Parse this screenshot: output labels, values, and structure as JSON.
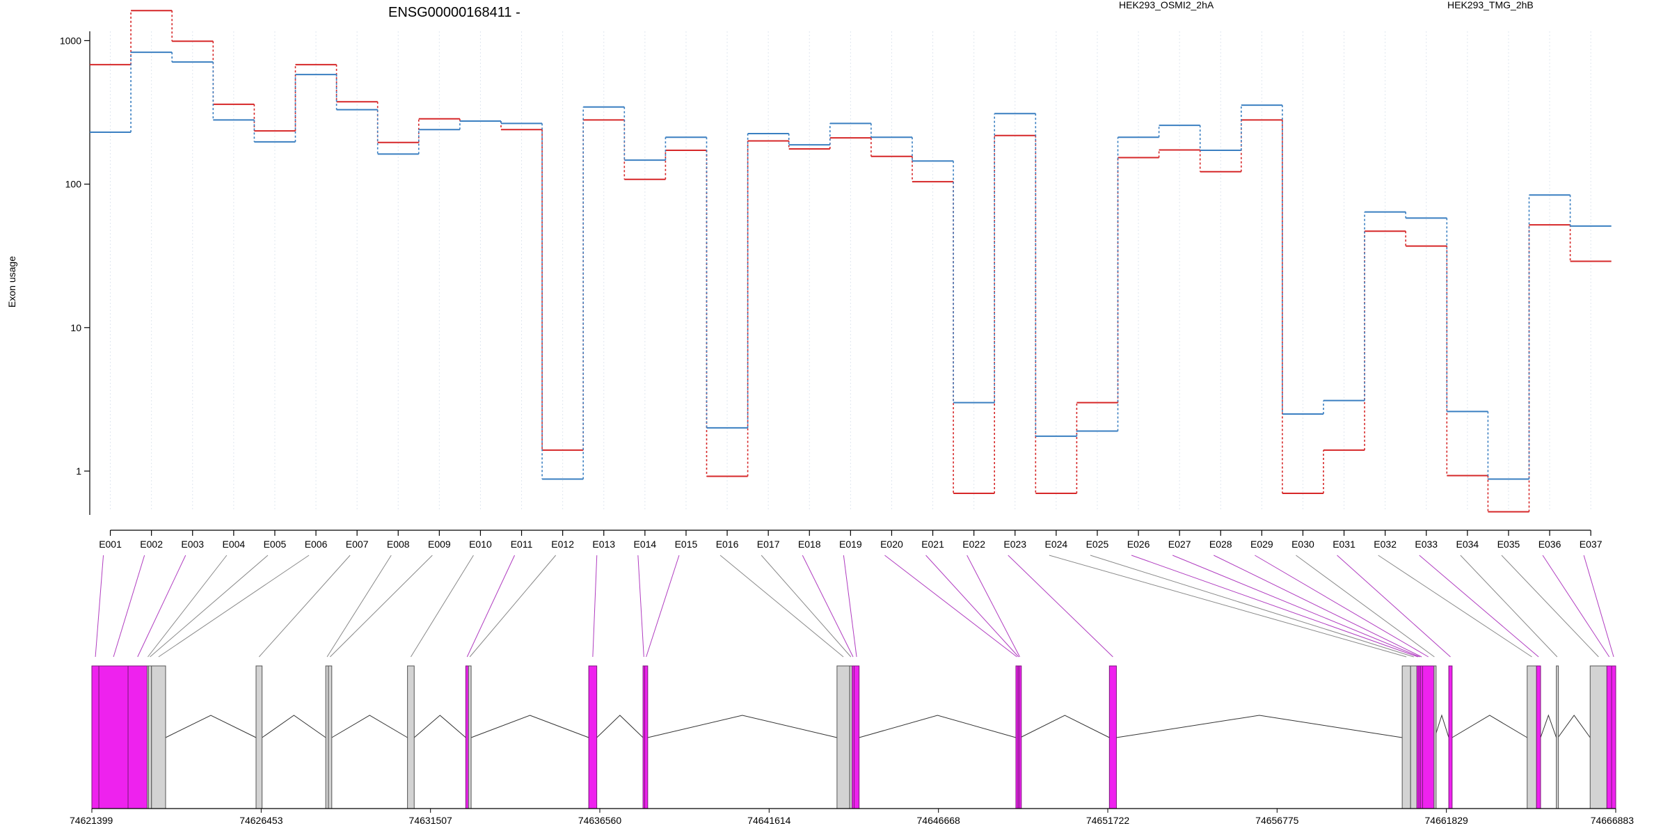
{
  "chart_data": [
    {
      "type": "line",
      "title": "ENSG00000168411 -",
      "ylabel": "Exon usage",
      "xlabel": "",
      "y_scale": "log",
      "ylim": [
        0.45,
        2000
      ],
      "grid": "vertical dotted lines at each exon",
      "legend": "top, horizontal",
      "yticks": [
        1,
        10,
        100,
        1000
      ],
      "ytick_labels": [
        "1",
        "10",
        "100",
        "1000"
      ],
      "categories": [
        "E001",
        "E002",
        "E003",
        "E004",
        "E005",
        "E006",
        "E007",
        "E008",
        "E009",
        "E010",
        "E011",
        "E012",
        "E013",
        "E014",
        "E015",
        "E016",
        "E017",
        "E018",
        "E019",
        "E020",
        "E021",
        "E022",
        "E023",
        "E024",
        "E025",
        "E026",
        "E027",
        "E028",
        "E029",
        "E030",
        "E031",
        "E032",
        "E033",
        "E034",
        "E035",
        "E036",
        "E037"
      ],
      "series": [
        {
          "name": "HEK293_OSMI2_2hA",
          "color": "#d62728",
          "values": [
            680,
            1620,
            990,
            360,
            235,
            680,
            375,
            195,
            285,
            275,
            240,
            1.4,
            280,
            108,
            172,
            0.92,
            200,
            176,
            210,
            156,
            104,
            0.7,
            218,
            0.7,
            3.0,
            153,
            173,
            122,
            280,
            0.7,
            1.4,
            47,
            37,
            0.93,
            0.52,
            52,
            29
          ]
        },
        {
          "name": "HEK293_TMG_2hB",
          "color": "#3a7fc1",
          "values": [
            230,
            830,
            710,
            280,
            197,
            580,
            330,
            162,
            240,
            275,
            265,
            0.88,
            345,
            147,
            212,
            2.0,
            225,
            188,
            265,
            212,
            145,
            3.0,
            310,
            1.75,
            1.9,
            212,
            257,
            172,
            355,
            2.5,
            3.1,
            64,
            58,
            2.6,
            0.88,
            84,
            51
          ]
        }
      ]
    },
    {
      "type": "gene-model",
      "strand": "-",
      "xlim": [
        74621399,
        74666883
      ],
      "xtick_labels": [
        "74621399",
        "74626453",
        "74631507",
        "74636560",
        "74641614",
        "74646668",
        "74651722",
        "74656775",
        "74661829",
        "74666883"
      ],
      "xticks": [
        74621399,
        74626453,
        74631507,
        74636560,
        74641614,
        74646668,
        74651722,
        74656775,
        74661829,
        74666883
      ],
      "exon_colors": {
        "significant": "#ee22ee",
        "other": "#d3d3d3",
        "highlight_edge": "#7a1a7a"
      },
      "exons": [
        {
          "id": "E001",
          "start": 74621399,
          "end": 74621610,
          "significant": true
        },
        {
          "id": "E002",
          "start": 74621610,
          "end": 74622480,
          "significant": true
        },
        {
          "id": "E003",
          "start": 74622480,
          "end": 74623050,
          "significant": true
        },
        {
          "id": "E004",
          "start": 74623050,
          "end": 74623090,
          "significant": false
        },
        {
          "id": "E005",
          "start": 74623090,
          "end": 74623180,
          "significant": false
        },
        {
          "id": "E006",
          "start": 74623180,
          "end": 74623600,
          "significant": false
        },
        {
          "id": "E007",
          "start": 74626300,
          "end": 74626480,
          "significant": false
        },
        {
          "id": "E008",
          "start": 74628380,
          "end": 74628460,
          "significant": false
        },
        {
          "id": "E009",
          "start": 74628460,
          "end": 74628560,
          "significant": false
        },
        {
          "id": "E010",
          "start": 74630820,
          "end": 74631020,
          "significant": false
        },
        {
          "id": "E011",
          "start": 74632560,
          "end": 74632640,
          "significant": true
        },
        {
          "id": "E012",
          "start": 74632640,
          "end": 74632720,
          "significant": false
        },
        {
          "id": "E013",
          "start": 74636230,
          "end": 74636470,
          "significant": true
        },
        {
          "id": "E014",
          "start": 74637850,
          "end": 74637900,
          "significant": true
        },
        {
          "id": "E015",
          "start": 74637900,
          "end": 74637990,
          "significant": true
        },
        {
          "id": "E016",
          "start": 74643640,
          "end": 74644020,
          "significant": false
        },
        {
          "id": "E017",
          "start": 74644020,
          "end": 74644090,
          "significant": false
        },
        {
          "id": "E018",
          "start": 74644090,
          "end": 74644150,
          "significant": true
        },
        {
          "id": "E019",
          "start": 74644150,
          "end": 74644300,
          "significant": true
        },
        {
          "id": "E020",
          "start": 74648980,
          "end": 74649040,
          "significant": true
        },
        {
          "id": "E021",
          "start": 74649040,
          "end": 74649080,
          "significant": true
        },
        {
          "id": "E022",
          "start": 74649080,
          "end": 74649110,
          "significant": true
        },
        {
          "id": "E023",
          "start": 74651770,
          "end": 74651980,
          "significant": true
        },
        {
          "id": "E024",
          "start": 74660510,
          "end": 74660760,
          "significant": false
        },
        {
          "id": "E025",
          "start": 74660760,
          "end": 74660950,
          "significant": false
        },
        {
          "id": "E026",
          "start": 74660950,
          "end": 74661010,
          "significant": true
        },
        {
          "id": "E027",
          "start": 74661010,
          "end": 74661060,
          "significant": true
        },
        {
          "id": "E028",
          "start": 74661060,
          "end": 74661120,
          "significant": true
        },
        {
          "id": "E029",
          "start": 74661120,
          "end": 74661460,
          "significant": true
        },
        {
          "id": "E030",
          "start": 74661460,
          "end": 74661480,
          "significant": false
        },
        {
          "id": "E031",
          "start": 74661900,
          "end": 74662000,
          "significant": true
        },
        {
          "id": "E032",
          "start": 74664240,
          "end": 74664520,
          "significant": false
        },
        {
          "id": "E033",
          "start": 74664520,
          "end": 74664640,
          "significant": true
        },
        {
          "id": "E034",
          "start": 74665110,
          "end": 74665160,
          "significant": false
        },
        {
          "id": "E035",
          "start": 74666120,
          "end": 74666620,
          "significant": false
        },
        {
          "id": "E036",
          "start": 74666620,
          "end": 74666760,
          "significant": true
        },
        {
          "id": "E037",
          "start": 74666760,
          "end": 74666883,
          "significant": true
        }
      ]
    }
  ]
}
